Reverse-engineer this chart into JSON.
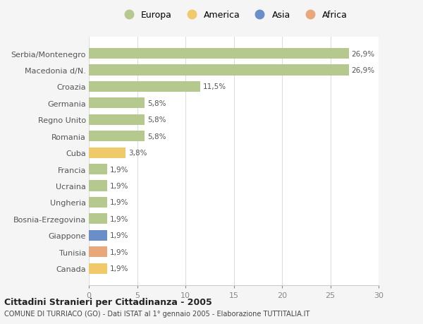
{
  "categories": [
    "Serbia/Montenegro",
    "Macedonia d/N.",
    "Croazia",
    "Germania",
    "Regno Unito",
    "Romania",
    "Cuba",
    "Francia",
    "Ucraina",
    "Ungheria",
    "Bosnia-Erzegovina",
    "Giappone",
    "Tunisia",
    "Canada"
  ],
  "values": [
    26.9,
    26.9,
    11.5,
    5.8,
    5.8,
    5.8,
    3.8,
    1.9,
    1.9,
    1.9,
    1.9,
    1.9,
    1.9,
    1.9
  ],
  "labels": [
    "26,9%",
    "26,9%",
    "11,5%",
    "5,8%",
    "5,8%",
    "5,8%",
    "3,8%",
    "1,9%",
    "1,9%",
    "1,9%",
    "1,9%",
    "1,9%",
    "1,9%",
    "1,9%"
  ],
  "colors": [
    "#b5c98e",
    "#b5c98e",
    "#b5c98e",
    "#b5c98e",
    "#b5c98e",
    "#b5c98e",
    "#f0c96a",
    "#b5c98e",
    "#b5c98e",
    "#b5c98e",
    "#b5c98e",
    "#6a8fc8",
    "#e8a87c",
    "#f0c96a"
  ],
  "legend": {
    "Europa": "#b5c98e",
    "America": "#f0c96a",
    "Asia": "#6a8fc8",
    "Africa": "#e8a87c"
  },
  "xlim": [
    0,
    30
  ],
  "xticks": [
    0,
    5,
    10,
    15,
    20,
    25,
    30
  ],
  "title": "Cittadini Stranieri per Cittadinanza - 2005",
  "subtitle": "COMUNE DI TURRIACO (GO) - Dati ISTAT al 1° gennaio 2005 - Elaborazione TUTTITALIA.IT",
  "background_color": "#f5f5f5",
  "bar_background": "#ffffff",
  "grid_color": "#dddddd"
}
